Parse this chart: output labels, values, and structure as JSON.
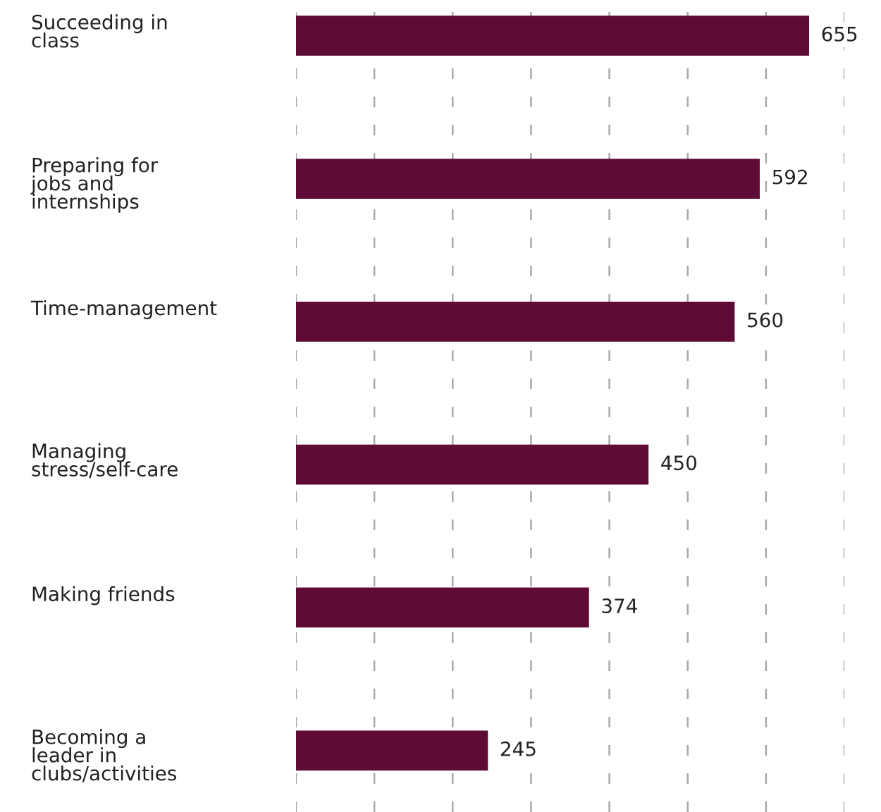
{
  "chart_data": {
    "type": "bar",
    "orientation": "horizontal",
    "categories": [
      "Succeeding in\nclass",
      "Preparing for\njobs and\ninternships",
      "Time-management",
      "Managing\nstress/self-care",
      "Making friends",
      "Becoming a\nleader in\nclubs/activities"
    ],
    "values": [
      655,
      592,
      560,
      450,
      374,
      245
    ],
    "color": "#5e0b36",
    "xlim": [
      0,
      700
    ],
    "xticks": [
      {
        "value": 0,
        "label": null
      },
      {
        "value": 100,
        "label": null
      },
      {
        "value": 200,
        "label": null
      },
      {
        "value": 300,
        "label": null
      },
      {
        "value": 400,
        "label": null
      },
      {
        "value": 500,
        "label": null
      },
      {
        "value": 600,
        "label": null
      },
      {
        "value": 700,
        "label": null
      }
    ],
    "grid": "x",
    "data_labels": true
  }
}
